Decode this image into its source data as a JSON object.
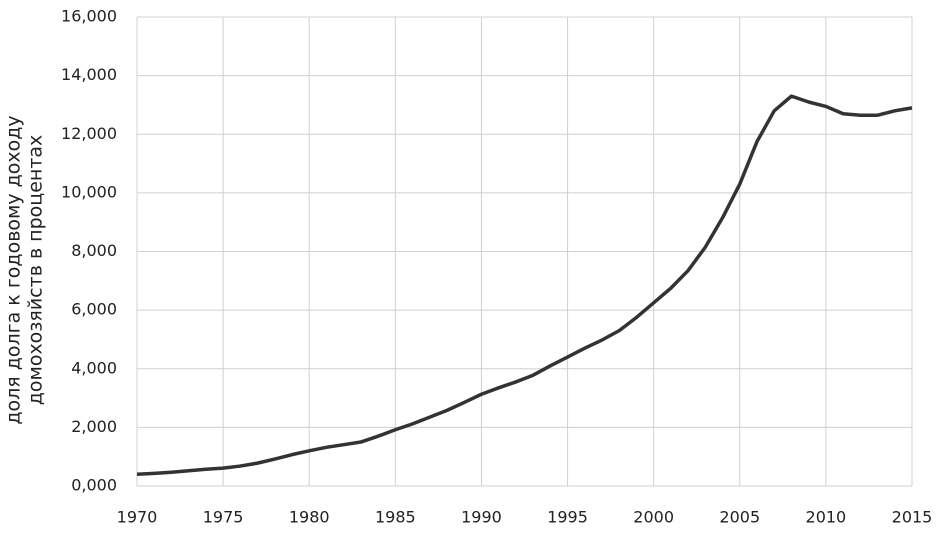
{
  "chart_data": {
    "type": "line",
    "y_label": [
      "доля долга к годовому доходу",
      "домохозяйств в процентах"
    ],
    "x": [
      1970,
      1971,
      1972,
      1973,
      1974,
      1975,
      1976,
      1977,
      1978,
      1979,
      1980,
      1981,
      1982,
      1983,
      1984,
      1985,
      1986,
      1987,
      1988,
      1989,
      1990,
      1991,
      1992,
      1993,
      1994,
      1995,
      1996,
      1997,
      1998,
      1999,
      2000,
      2001,
      2002,
      2003,
      2004,
      2005,
      2006,
      2007,
      2008,
      2009,
      2010,
      2011,
      2012,
      2013,
      2014,
      2015
    ],
    "series": [
      {
        "color": "#333333",
        "values": [
          0.4,
          0.43,
          0.47,
          0.52,
          0.57,
          0.61,
          0.68,
          0.78,
          0.92,
          1.07,
          1.2,
          1.32,
          1.41,
          1.5,
          1.7,
          1.92,
          2.12,
          2.35,
          2.58,
          2.85,
          3.13,
          3.35,
          3.55,
          3.78,
          4.1,
          4.4,
          4.7,
          4.98,
          5.3,
          5.75,
          6.25,
          6.75,
          7.35,
          8.15,
          9.15,
          10.3,
          11.75,
          12.8,
          13.3,
          13.1,
          12.95,
          12.7,
          12.65,
          12.65,
          12.8,
          12.9
        ]
      }
    ],
    "xlim": [
      1970,
      2015
    ],
    "xticks": [
      1970,
      1975,
      1980,
      1985,
      1990,
      1995,
      2000,
      2005,
      2010,
      2015
    ],
    "ylim": [
      0,
      16
    ],
    "yticks": [
      {
        "value": 0,
        "label": "0,000"
      },
      {
        "value": 2,
        "label": "2,000"
      },
      {
        "value": 4,
        "label": "4,000"
      },
      {
        "value": 6,
        "label": "6,000"
      },
      {
        "value": 8,
        "label": "8,000"
      },
      {
        "value": 10,
        "label": "10,000"
      },
      {
        "value": 12,
        "label": "12,000"
      },
      {
        "value": 14,
        "label": "14,000"
      },
      {
        "value": 16,
        "label": "16,000"
      }
    ],
    "grid": true
  }
}
